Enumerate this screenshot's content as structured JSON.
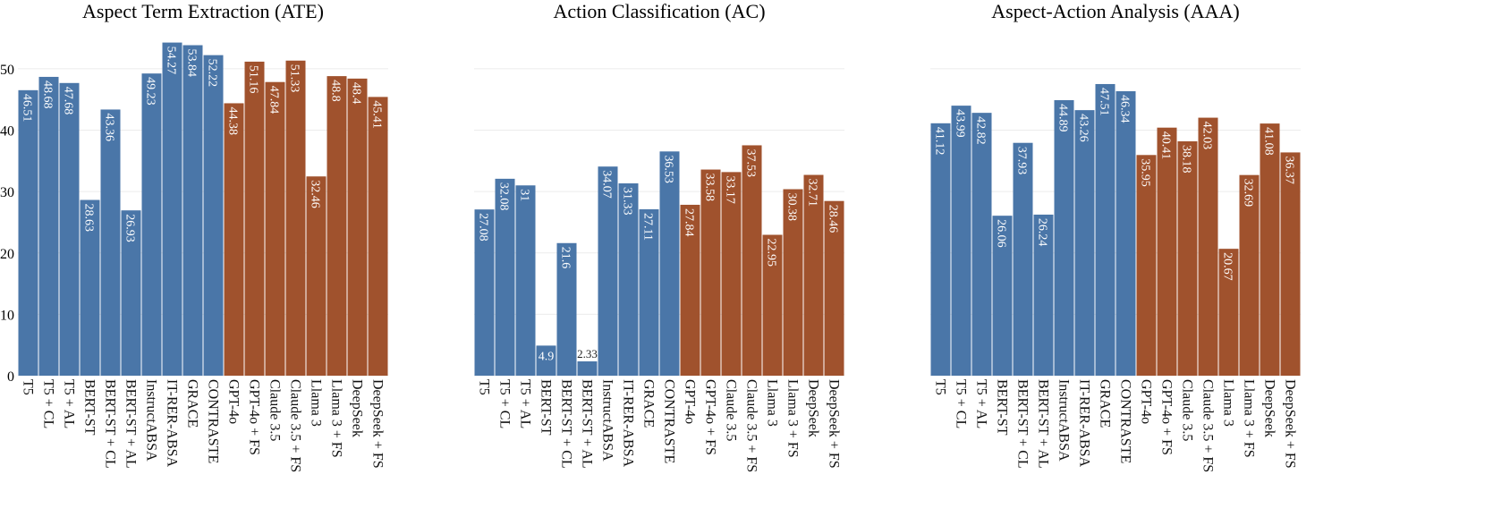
{
  "chart_data": [
    {
      "type": "bar",
      "title": "Aspect Term Extraction (ATE)",
      "categories": [
        "T5",
        "T5 + CL",
        "T5 + AL",
        "BERT-ST",
        "BERT-ST + CL",
        "BERT-ST + AL",
        "InstructABSA",
        "IT-RER-ABSA",
        "GRACE",
        "CONTRASTE",
        "GPT-4o",
        "GPT-4o + FS",
        "Claude 3.5",
        "Claude 3.5 + FS",
        "Llama 3",
        "Llama 3 + FS",
        "DeepSeek",
        "DeepSeek + FS"
      ],
      "values": [
        46.51,
        48.68,
        47.68,
        28.63,
        43.36,
        26.93,
        49.23,
        54.27,
        53.84,
        52.22,
        44.38,
        51.16,
        47.84,
        51.33,
        32.46,
        48.8,
        48.4,
        45.41
      ],
      "colors": [
        "#4a76a8",
        "#4a76a8",
        "#4a76a8",
        "#4a76a8",
        "#4a76a8",
        "#4a76a8",
        "#4a76a8",
        "#4a76a8",
        "#4a76a8",
        "#4a76a8",
        "#a0522d",
        "#a0522d",
        "#a0522d",
        "#a0522d",
        "#a0522d",
        "#a0522d",
        "#a0522d",
        "#a0522d"
      ],
      "ylim": [
        0,
        54.5
      ],
      "yticks": [
        0,
        10,
        20,
        30,
        40,
        50
      ],
      "grid": true
    },
    {
      "type": "bar",
      "title": "Action Classification (AC)",
      "categories": [
        "T5",
        "T5 + CL",
        "T5 + AL",
        "BERT-ST",
        "BERT-ST + CL",
        "BERT-ST + AL",
        "InstructABSA",
        "IT-RER-ABSA",
        "GRACE",
        "CONTRASTE",
        "GPT-4o",
        "GPT-4o + FS",
        "Claude 3.5",
        "Claude 3.5 + FS",
        "Llama 3",
        "Llama 3 + FS",
        "DeepSeek",
        "DeepSeek + FS"
      ],
      "values": [
        27.08,
        32.08,
        31,
        4.9,
        21.6,
        2.33,
        34.07,
        31.33,
        27.11,
        36.53,
        27.84,
        33.58,
        33.17,
        37.53,
        22.95,
        30.38,
        32.71,
        28.46
      ],
      "colors": [
        "#4a76a8",
        "#4a76a8",
        "#4a76a8",
        "#4a76a8",
        "#4a76a8",
        "#4a76a8",
        "#4a76a8",
        "#4a76a8",
        "#4a76a8",
        "#4a76a8",
        "#a0522d",
        "#a0522d",
        "#a0522d",
        "#a0522d",
        "#a0522d",
        "#a0522d",
        "#a0522d",
        "#a0522d"
      ],
      "ylim": [
        0,
        54.5
      ],
      "grid": true
    },
    {
      "type": "bar",
      "title": "Aspect-Action Analysis (AAA)",
      "categories": [
        "T5",
        "T5 + CL",
        "T5 + AL",
        "BERT-ST",
        "BERT-ST + CL",
        "BERT-ST + AL",
        "InstructABSA",
        "IT-RER-ABSA",
        "GRACE",
        "CONTRASTE",
        "GPT-4o",
        "GPT-4o + FS",
        "Claude 3.5",
        "Claude 3.5 + FS",
        "Llama 3",
        "Llama 3 + FS",
        "DeepSeek",
        "DeepSeek + FS"
      ],
      "values": [
        41.12,
        43.99,
        42.82,
        26.06,
        37.93,
        26.24,
        44.89,
        43.26,
        47.51,
        46.34,
        35.95,
        40.41,
        38.18,
        42.03,
        20.67,
        32.69,
        41.08,
        36.37
      ],
      "colors": [
        "#4a76a8",
        "#4a76a8",
        "#4a76a8",
        "#4a76a8",
        "#4a76a8",
        "#4a76a8",
        "#4a76a8",
        "#4a76a8",
        "#4a76a8",
        "#4a76a8",
        "#a0522d",
        "#a0522d",
        "#a0522d",
        "#a0522d",
        "#a0522d",
        "#a0522d",
        "#a0522d",
        "#a0522d"
      ],
      "ylim": [
        0,
        54.5
      ],
      "grid": true
    }
  ]
}
